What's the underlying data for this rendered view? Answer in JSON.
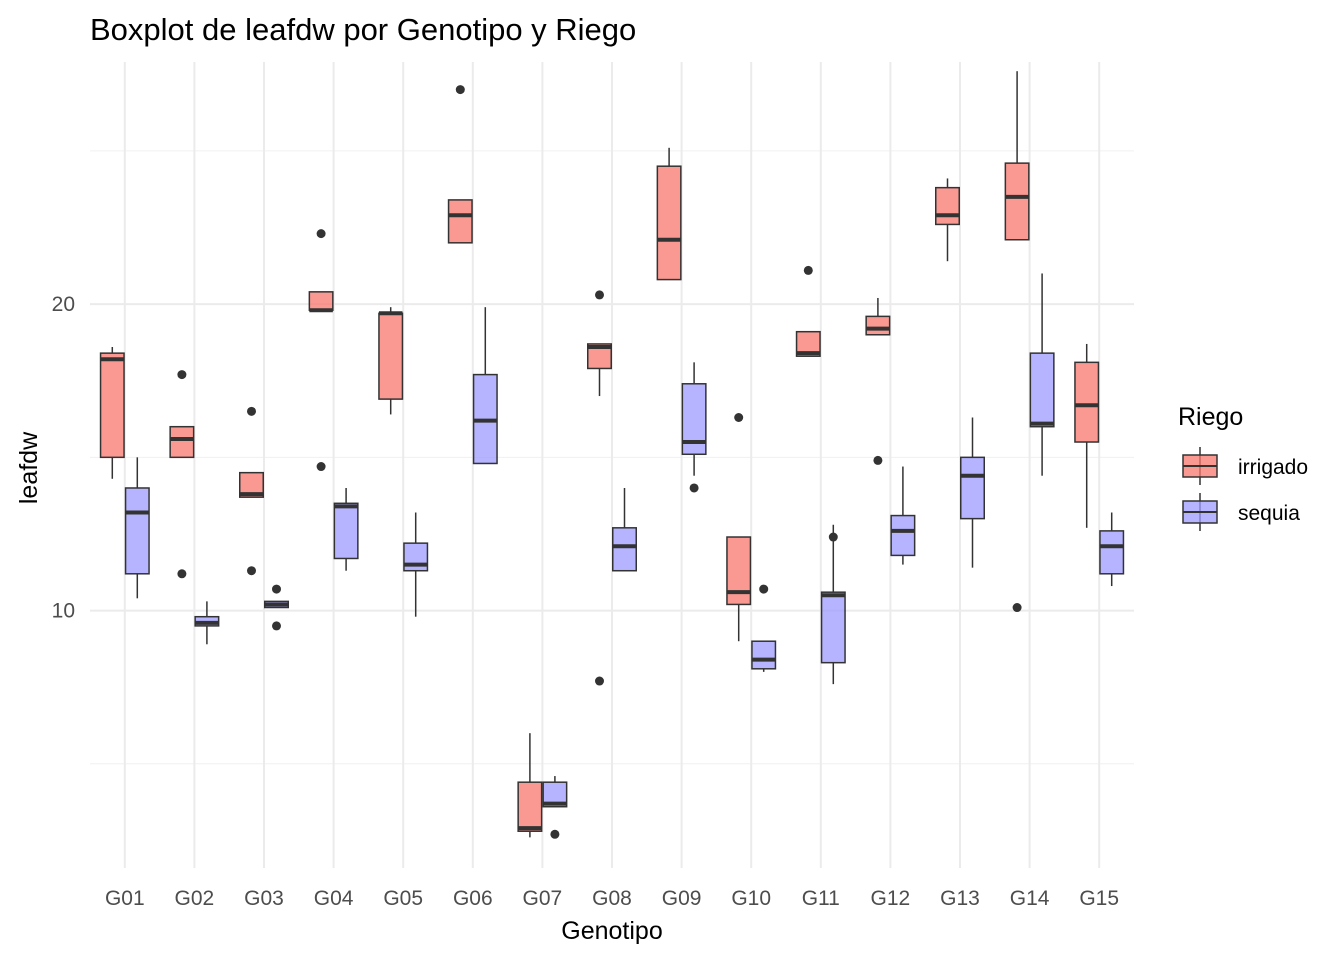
{
  "chart_data": {
    "type": "boxplot",
    "title": "Boxplot de leafdw por Genotipo y Riego",
    "xlabel": "Genotipo",
    "ylabel": "leafdw",
    "ylim": [
      1.6,
      27.9
    ],
    "y_ticks": [
      10,
      20
    ],
    "y_tick_labels": [
      "10",
      "20"
    ],
    "y_minor_gridlines": [
      5,
      15,
      25
    ],
    "grid": true,
    "categories": [
      "G01",
      "G02",
      "G03",
      "G04",
      "G05",
      "G06",
      "G07",
      "G08",
      "G09",
      "G10",
      "G11",
      "G12",
      "G13",
      "G14",
      "G15"
    ],
    "legend": {
      "title": "Riego",
      "position": "right"
    },
    "series": [
      {
        "name": "irrigado",
        "color": "#f8766d",
        "boxes": [
          {
            "lower_whisker": 14.3,
            "q1": 15.0,
            "median": 18.2,
            "q3": 18.4,
            "upper_whisker": 18.6,
            "outliers": []
          },
          {
            "lower_whisker": 15.0,
            "q1": 15.0,
            "median": 15.6,
            "q3": 16.0,
            "upper_whisker": 16.0,
            "outliers": [
              17.7,
              11.2
            ]
          },
          {
            "lower_whisker": 13.7,
            "q1": 13.7,
            "median": 13.8,
            "q3": 14.5,
            "upper_whisker": 14.5,
            "outliers": [
              16.5,
              11.3
            ]
          },
          {
            "lower_whisker": 19.8,
            "q1": 19.8,
            "median": 19.8,
            "q3": 20.4,
            "upper_whisker": 20.4,
            "outliers": [
              22.3,
              14.7
            ]
          },
          {
            "lower_whisker": 16.4,
            "q1": 16.9,
            "median": 19.7,
            "q3": 19.7,
            "upper_whisker": 19.9,
            "outliers": []
          },
          {
            "lower_whisker": 22.0,
            "q1": 22.0,
            "median": 22.9,
            "q3": 23.4,
            "upper_whisker": 23.4,
            "outliers": [
              27.0
            ]
          },
          {
            "lower_whisker": 2.6,
            "q1": 2.8,
            "median": 2.9,
            "q3": 4.4,
            "upper_whisker": 6.0,
            "outliers": []
          },
          {
            "lower_whisker": 17.0,
            "q1": 17.9,
            "median": 18.6,
            "q3": 18.7,
            "upper_whisker": 18.7,
            "outliers": [
              20.3,
              7.7
            ]
          },
          {
            "lower_whisker": 20.8,
            "q1": 20.8,
            "median": 22.1,
            "q3": 24.5,
            "upper_whisker": 25.1,
            "outliers": []
          },
          {
            "lower_whisker": 9.0,
            "q1": 10.2,
            "median": 10.6,
            "q3": 12.4,
            "upper_whisker": 12.4,
            "outliers": [
              16.3
            ]
          },
          {
            "lower_whisker": 18.3,
            "q1": 18.3,
            "median": 18.4,
            "q3": 19.1,
            "upper_whisker": 19.1,
            "outliers": [
              21.1
            ]
          },
          {
            "lower_whisker": 19.0,
            "q1": 19.0,
            "median": 19.2,
            "q3": 19.6,
            "upper_whisker": 20.2,
            "outliers": [
              14.9
            ]
          },
          {
            "lower_whisker": 21.4,
            "q1": 22.6,
            "median": 22.9,
            "q3": 23.8,
            "upper_whisker": 24.1,
            "outliers": []
          },
          {
            "lower_whisker": 22.1,
            "q1": 22.1,
            "median": 23.5,
            "q3": 24.6,
            "upper_whisker": 27.6,
            "outliers": [
              10.1
            ]
          },
          {
            "lower_whisker": 12.7,
            "q1": 15.5,
            "median": 16.7,
            "q3": 18.1,
            "upper_whisker": 18.7,
            "outliers": []
          }
        ]
      },
      {
        "name": "sequia",
        "color": "#9e9bff",
        "boxes": [
          {
            "lower_whisker": 10.4,
            "q1": 11.2,
            "median": 13.2,
            "q3": 14.0,
            "upper_whisker": 15.0,
            "outliers": []
          },
          {
            "lower_whisker": 8.9,
            "q1": 9.5,
            "median": 9.6,
            "q3": 9.8,
            "upper_whisker": 10.3,
            "outliers": []
          },
          {
            "lower_whisker": 10.1,
            "q1": 10.1,
            "median": 10.2,
            "q3": 10.3,
            "upper_whisker": 10.3,
            "outliers": [
              10.7,
              9.5
            ]
          },
          {
            "lower_whisker": 11.3,
            "q1": 11.7,
            "median": 13.4,
            "q3": 13.5,
            "upper_whisker": 14.0,
            "outliers": []
          },
          {
            "lower_whisker": 9.8,
            "q1": 11.3,
            "median": 11.5,
            "q3": 12.2,
            "upper_whisker": 13.2,
            "outliers": []
          },
          {
            "lower_whisker": 14.8,
            "q1": 14.8,
            "median": 16.2,
            "q3": 17.7,
            "upper_whisker": 19.9,
            "outliers": []
          },
          {
            "lower_whisker": 3.6,
            "q1": 3.6,
            "median": 3.7,
            "q3": 4.4,
            "upper_whisker": 4.6,
            "outliers": [
              2.7
            ]
          },
          {
            "lower_whisker": 11.3,
            "q1": 11.3,
            "median": 12.1,
            "q3": 12.7,
            "upper_whisker": 14.0,
            "outliers": []
          },
          {
            "lower_whisker": 14.4,
            "q1": 15.1,
            "median": 15.5,
            "q3": 17.4,
            "upper_whisker": 18.1,
            "outliers": [
              14.0
            ]
          },
          {
            "lower_whisker": 8.0,
            "q1": 8.1,
            "median": 8.4,
            "q3": 9.0,
            "upper_whisker": 9.0,
            "outliers": [
              10.7
            ]
          },
          {
            "lower_whisker": 7.6,
            "q1": 8.3,
            "median": 10.5,
            "q3": 10.6,
            "upper_whisker": 12.8,
            "outliers": [
              12.4
            ]
          },
          {
            "lower_whisker": 11.5,
            "q1": 11.8,
            "median": 12.6,
            "q3": 13.1,
            "upper_whisker": 14.7,
            "outliers": []
          },
          {
            "lower_whisker": 11.4,
            "q1": 13.0,
            "median": 14.4,
            "q3": 15.0,
            "upper_whisker": 16.3,
            "outliers": []
          },
          {
            "lower_whisker": 14.4,
            "q1": 16.0,
            "median": 16.1,
            "q3": 18.4,
            "upper_whisker": 21.0,
            "outliers": []
          },
          {
            "lower_whisker": 10.8,
            "q1": 11.2,
            "median": 12.1,
            "q3": 12.6,
            "upper_whisker": 13.2,
            "outliers": []
          }
        ]
      }
    ]
  }
}
